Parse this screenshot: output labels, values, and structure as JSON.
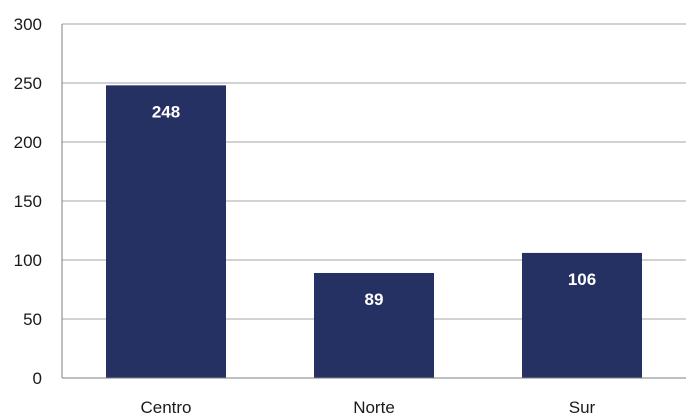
{
  "chart_data": {
    "type": "bar",
    "title": "",
    "xlabel": "",
    "ylabel": "",
    "categories": [
      "Centro",
      "Norte",
      "Sur"
    ],
    "values": [
      248,
      89,
      106
    ],
    "data_labels": [
      "248",
      "89",
      "106"
    ],
    "ylim": [
      0,
      300
    ],
    "yticks": [
      0,
      50,
      100,
      150,
      200,
      250,
      300
    ],
    "ytick_labels": [
      "0",
      "50",
      "100",
      "150",
      "200",
      "250",
      "300"
    ],
    "grid": true,
    "legend": "none",
    "bar_color": "#253163",
    "grid_color": "#a6a6a6",
    "axis_color": "#7f7f7f"
  }
}
